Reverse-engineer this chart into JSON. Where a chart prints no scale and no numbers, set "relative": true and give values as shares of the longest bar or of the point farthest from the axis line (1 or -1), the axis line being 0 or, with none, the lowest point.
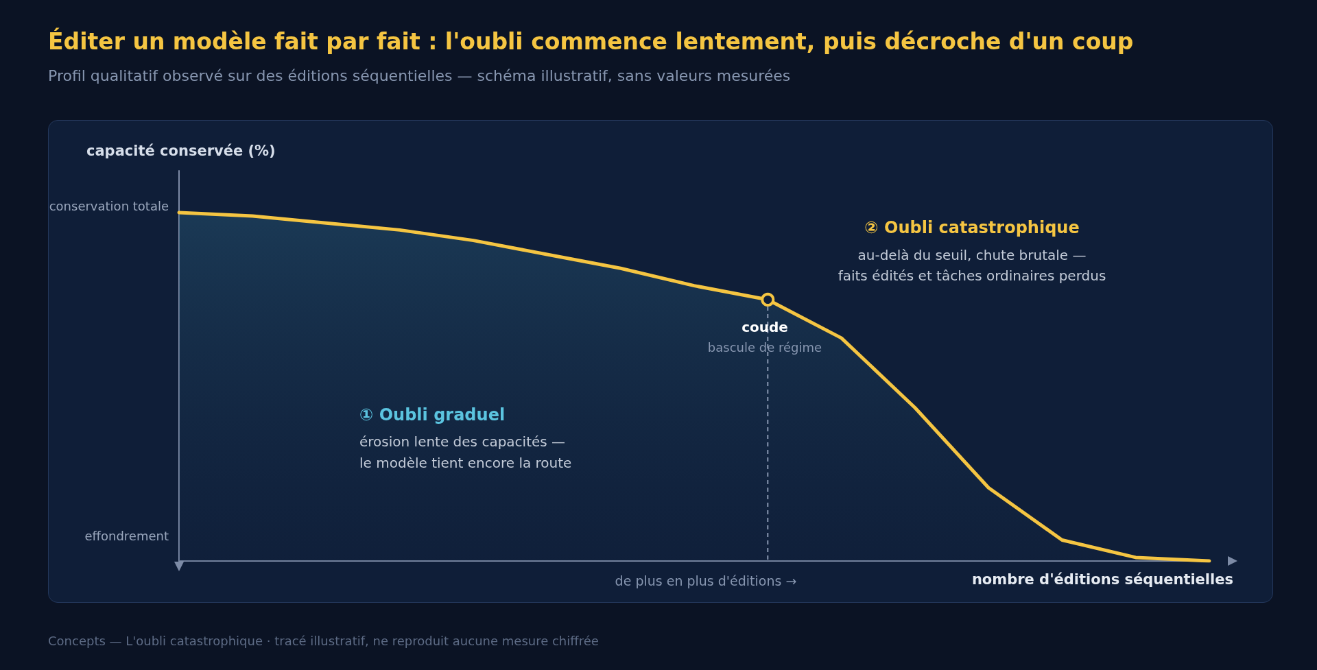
{
  "chart_data": {
    "type": "area",
    "title": "Éditer un modèle fait par fait : l'oubli commence lentement, puis décroche d'un coup",
    "subtitle": "Profil qualitatif observé sur des éditions séquentielles — schéma illustratif, sans valeurs mesurées",
    "xlabel": "nombre d'éditions séquentielles",
    "ylabel": "capacité conservée (%)",
    "relative": true,
    "grid": false,
    "categories": [
      null,
      null,
      null,
      null,
      null,
      null,
      null,
      null,
      null,
      null,
      null,
      null,
      null,
      null,
      null
    ],
    "series": [
      {
        "color": "#f5c542",
        "values": [
          1.0,
          0.99,
          0.97,
          0.95,
          0.92,
          0.88,
          0.84,
          0.79,
          0.75,
          0.64,
          0.44,
          0.21,
          0.06,
          0.01,
          0.0
        ]
      }
    ],
    "annotations": [
      "conservation totale",
      "effondrement",
      "coude",
      "bascule de régime",
      "① Oubli graduel",
      "érosion lente des capacités —",
      "le modèle tient encore la route",
      "② Oubli catastrophique",
      "au-delà du seuil, chute brutale —",
      "faits édités et tâches ordinaires perdus",
      "de plus en plus d'éditions →",
      "Concepts — L'oubli catastrophique · tracé illustratif, ne reproduit aucune mesure chiffrée"
    ]
  }
}
